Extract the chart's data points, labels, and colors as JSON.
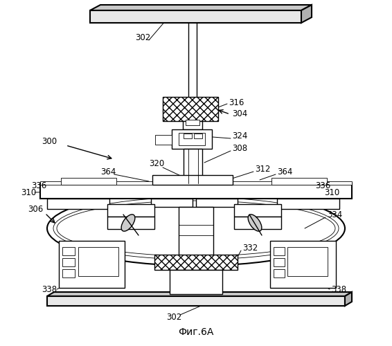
{
  "bg_color": "#ffffff",
  "title": "Фиг.6А"
}
